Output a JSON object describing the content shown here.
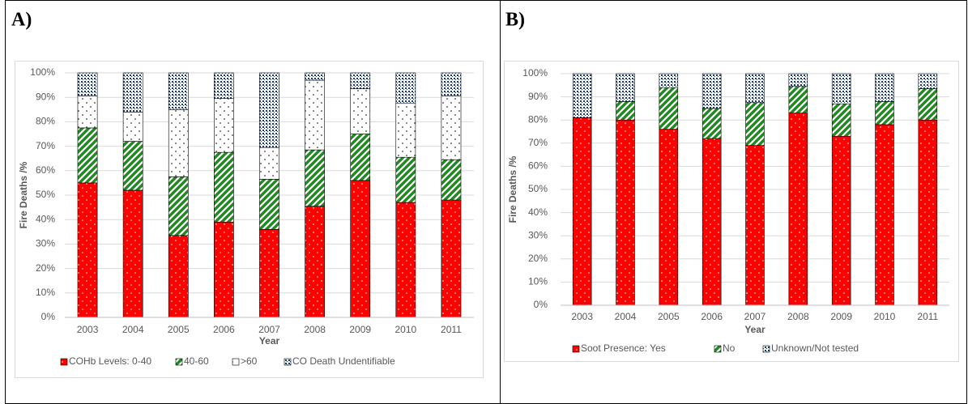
{
  "chart_data": [
    {
      "type": "stacked_bar",
      "title": "A)",
      "y_label": "Fire Deaths /%",
      "x_label": "Year",
      "categories": [
        "2003",
        "2004",
        "2005",
        "2006",
        "2007",
        "2008",
        "2009",
        "2010",
        "2011"
      ],
      "series": [
        {
          "name": "COHb Levels: 0-40",
          "color": "#ff0000",
          "pattern": "dots",
          "values": [
            55,
            52,
            33.5,
            39,
            36,
            45.5,
            56,
            47,
            48
          ]
        },
        {
          "name": "40-60",
          "color": "#1e8c1e",
          "pattern": "stripes",
          "values": [
            22.5,
            20,
            24,
            28.5,
            20.5,
            23,
            19,
            18.5,
            16.5
          ]
        },
        {
          "name": ">60",
          "color": "#ffffff",
          "pattern": "dots",
          "values": [
            13,
            12,
            27.5,
            22,
            13,
            28.5,
            18.5,
            22,
            26
          ]
        },
        {
          "name": "CO Death Undentifiable",
          "color": "#ffffff",
          "pattern": "checks",
          "values": [
            9.5,
            16,
            15,
            10.5,
            30.5,
            3,
            6.5,
            12.5,
            9.5
          ]
        }
      ],
      "ylim": [
        0,
        100
      ],
      "yticks": [
        {
          "value": 0,
          "label": "0%"
        },
        {
          "value": 10,
          "label": "10%"
        },
        {
          "value": 20,
          "label": "20%"
        },
        {
          "value": 30,
          "label": "30%"
        },
        {
          "value": 40,
          "label": "40%"
        },
        {
          "value": 50,
          "label": "50%"
        },
        {
          "value": 60,
          "label": "60%"
        },
        {
          "value": 70,
          "label": "70%"
        },
        {
          "value": 80,
          "label": "80%"
        },
        {
          "value": 90,
          "label": "90%"
        },
        {
          "value": 100,
          "label": "100%"
        }
      ],
      "grid": true,
      "legend": "bottom"
    },
    {
      "type": "stacked_bar",
      "title": "B)",
      "y_label": "Fire Deaths /%",
      "x_label": "Year",
      "categories": [
        "2003",
        "2004",
        "2005",
        "2006",
        "2007",
        "2008",
        "2009",
        "2010",
        "2011"
      ],
      "series": [
        {
          "name": "Soot Presence: Yes",
          "color": "#ff0000",
          "pattern": "dots",
          "values": [
            81,
            80,
            76,
            72,
            69,
            83,
            73,
            78,
            80
          ]
        },
        {
          "name": "No",
          "color": "#1e8c1e",
          "pattern": "stripes",
          "values": [
            0,
            8,
            18,
            13,
            18.5,
            11.5,
            14,
            10,
            13.5
          ]
        },
        {
          "name": "Unknown/Not tested",
          "color": "#ffffff",
          "pattern": "checks",
          "values": [
            19,
            12,
            6,
            15,
            12.5,
            5.5,
            13,
            12,
            6.5
          ]
        }
      ],
      "ylim": [
        0,
        100
      ],
      "yticks": [
        {
          "value": 0,
          "label": "0%"
        },
        {
          "value": 10,
          "label": "10%"
        },
        {
          "value": 20,
          "label": "20%"
        },
        {
          "value": 30,
          "label": "30%"
        },
        {
          "value": 40,
          "label": "40%"
        },
        {
          "value": 50,
          "label": "50%"
        },
        {
          "value": 60,
          "label": "60%"
        },
        {
          "value": 70,
          "label": "70%"
        },
        {
          "value": 80,
          "label": "80%"
        },
        {
          "value": 90,
          "label": "90%"
        },
        {
          "value": 100,
          "label": "100%"
        }
      ],
      "grid": true,
      "legend": "bottom"
    }
  ]
}
